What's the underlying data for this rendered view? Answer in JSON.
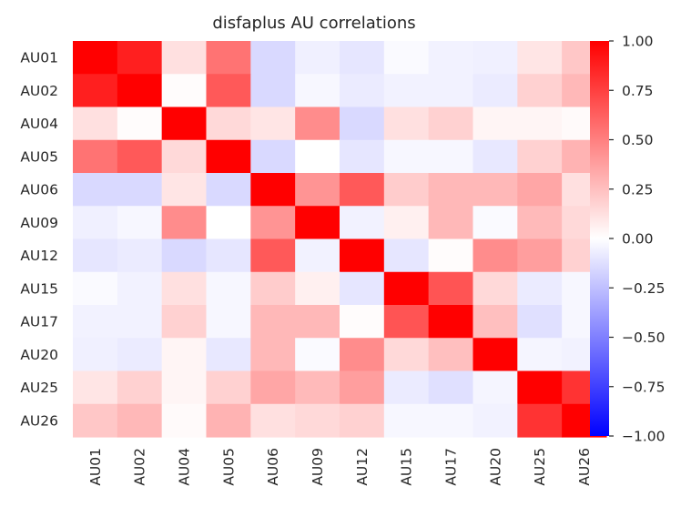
{
  "chart_data": {
    "type": "heatmap",
    "title": "disfaplus AU correlations",
    "row_labels": [
      "AU01",
      "AU02",
      "AU04",
      "AU05",
      "AU06",
      "AU09",
      "AU12",
      "AU15",
      "AU17",
      "AU20",
      "AU25",
      "AU26"
    ],
    "col_labels": [
      "AU01",
      "AU02",
      "AU04",
      "AU05",
      "AU06",
      "AU09",
      "AU12",
      "AU15",
      "AU17",
      "AU20",
      "AU25",
      "AU26"
    ],
    "values": [
      [
        1.0,
        0.88,
        0.12,
        0.55,
        -0.15,
        -0.06,
        -0.1,
        -0.02,
        -0.05,
        -0.06,
        0.1,
        0.22
      ],
      [
        0.88,
        1.0,
        0.01,
        0.65,
        -0.15,
        -0.03,
        -0.08,
        -0.05,
        -0.05,
        -0.08,
        0.18,
        0.28
      ],
      [
        0.12,
        0.01,
        1.0,
        0.15,
        0.1,
        0.45,
        -0.15,
        0.12,
        0.18,
        0.04,
        0.04,
        0.02
      ],
      [
        0.55,
        0.65,
        0.15,
        1.0,
        -0.15,
        0.0,
        -0.1,
        -0.03,
        -0.03,
        -0.09,
        0.18,
        0.3
      ],
      [
        -0.15,
        -0.15,
        0.1,
        -0.15,
        1.0,
        0.42,
        0.65,
        0.2,
        0.28,
        0.28,
        0.35,
        0.12
      ],
      [
        -0.06,
        -0.03,
        0.45,
        0.0,
        0.42,
        1.0,
        -0.05,
        0.06,
        0.28,
        -0.02,
        0.27,
        0.15
      ],
      [
        -0.1,
        -0.08,
        -0.15,
        -0.1,
        0.65,
        -0.05,
        1.0,
        -0.1,
        0.01,
        0.45,
        0.38,
        0.18
      ],
      [
        -0.02,
        -0.05,
        0.12,
        -0.03,
        0.2,
        0.06,
        -0.1,
        1.0,
        0.67,
        0.15,
        -0.08,
        -0.03
      ],
      [
        -0.05,
        -0.05,
        0.18,
        -0.03,
        0.28,
        0.28,
        0.01,
        0.67,
        1.0,
        0.25,
        -0.12,
        -0.03
      ],
      [
        -0.06,
        -0.08,
        0.04,
        -0.09,
        0.28,
        -0.02,
        0.45,
        0.15,
        0.25,
        1.0,
        -0.04,
        -0.05
      ],
      [
        0.1,
        0.18,
        0.04,
        0.18,
        0.35,
        0.27,
        0.38,
        -0.08,
        -0.12,
        -0.04,
        1.0,
        0.8
      ],
      [
        0.22,
        0.28,
        0.02,
        0.3,
        0.12,
        0.15,
        0.18,
        -0.03,
        -0.03,
        -0.05,
        0.8,
        1.0
      ]
    ],
    "vmin": -1.0,
    "vmax": 1.0,
    "colormap": "bwr",
    "colorbar_ticks": [
      "1.00",
      "0.75",
      "0.50",
      "0.25",
      "0.00",
      "−0.25",
      "−0.50",
      "−0.75",
      "−1.00"
    ],
    "colorbar_tick_values": [
      1.0,
      0.75,
      0.5,
      0.25,
      0.0,
      -0.25,
      -0.5,
      -0.75,
      -1.0
    ],
    "colors": {
      "low": "#0000ff",
      "mid": "#ffffff",
      "high": "#ff0000",
      "text": "#262626"
    }
  }
}
